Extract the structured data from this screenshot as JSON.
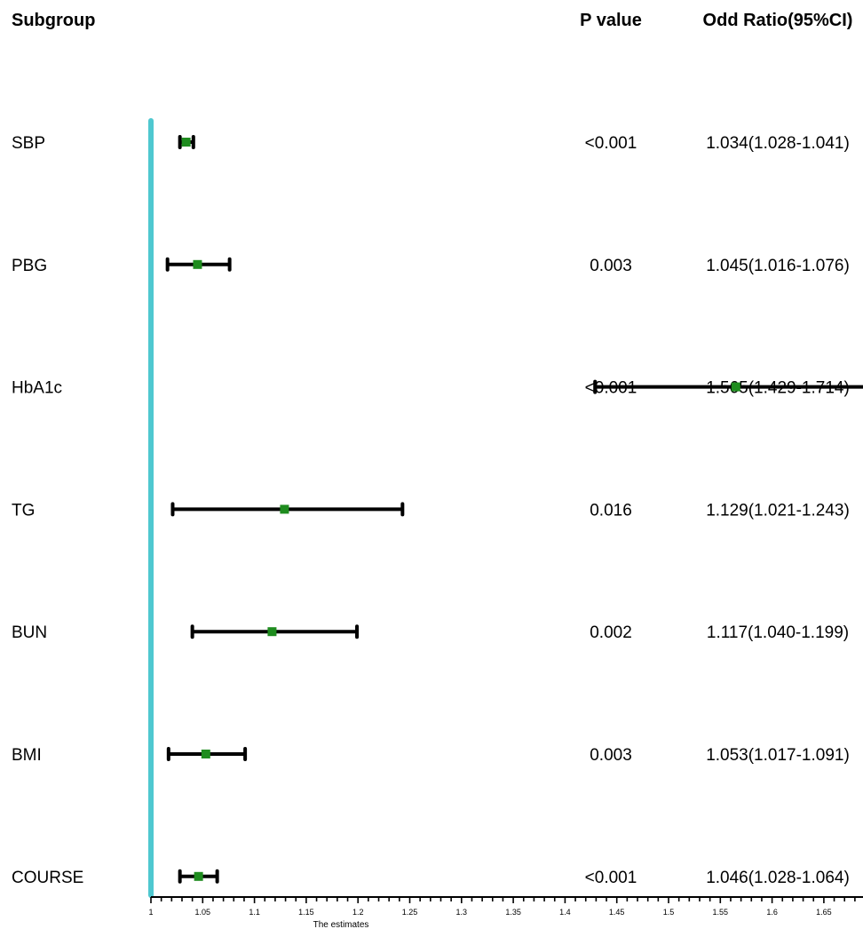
{
  "chart_data": {
    "type": "forest",
    "headers": {
      "subgroup": "Subgroup",
      "p_value": "P value",
      "odds_ratio": "Odd Ratio(95%CI)"
    },
    "xlabel": "The estimates",
    "xlim": [
      1,
      1.72
    ],
    "reference_line": 1,
    "ticks": [
      "1",
      "1.05",
      "1.1",
      "1.15",
      "1.2",
      "1.25",
      "1.3",
      "1.35",
      "1.4",
      "1.45",
      "1.5",
      "1.55",
      "1.6",
      "1.65",
      "1.7"
    ],
    "colors": {
      "reference": "#4fc8d0",
      "point": "#1e8c1e",
      "ci": "#000000"
    },
    "rows": [
      {
        "name": "SBP",
        "p": "<0.001",
        "or_text": "1.034(1.028-1.041)",
        "estimate": 1.034,
        "lower": 1.028,
        "upper": 1.041
      },
      {
        "name": "PBG",
        "p": "0.003",
        "or_text": "1.045(1.016-1.076)",
        "estimate": 1.045,
        "lower": 1.016,
        "upper": 1.076
      },
      {
        "name": "HbA1c",
        "p": "<0.001",
        "or_text": "1.565(1.429-1.714)",
        "estimate": 1.565,
        "lower": 1.429,
        "upper": 1.714
      },
      {
        "name": "TG",
        "p": "0.016",
        "or_text": "1.129(1.021-1.243)",
        "estimate": 1.129,
        "lower": 1.021,
        "upper": 1.243
      },
      {
        "name": "BUN",
        "p": "0.002",
        "or_text": "1.117(1.040-1.199)",
        "estimate": 1.117,
        "lower": 1.04,
        "upper": 1.199
      },
      {
        "name": "BMI",
        "p": "0.003",
        "or_text": "1.053(1.017-1.091)",
        "estimate": 1.053,
        "lower": 1.017,
        "upper": 1.091
      },
      {
        "name": "COURSE",
        "p": "<0.001",
        "or_text": "1.046(1.028-1.064)",
        "estimate": 1.046,
        "lower": 1.028,
        "upper": 1.064
      }
    ]
  }
}
